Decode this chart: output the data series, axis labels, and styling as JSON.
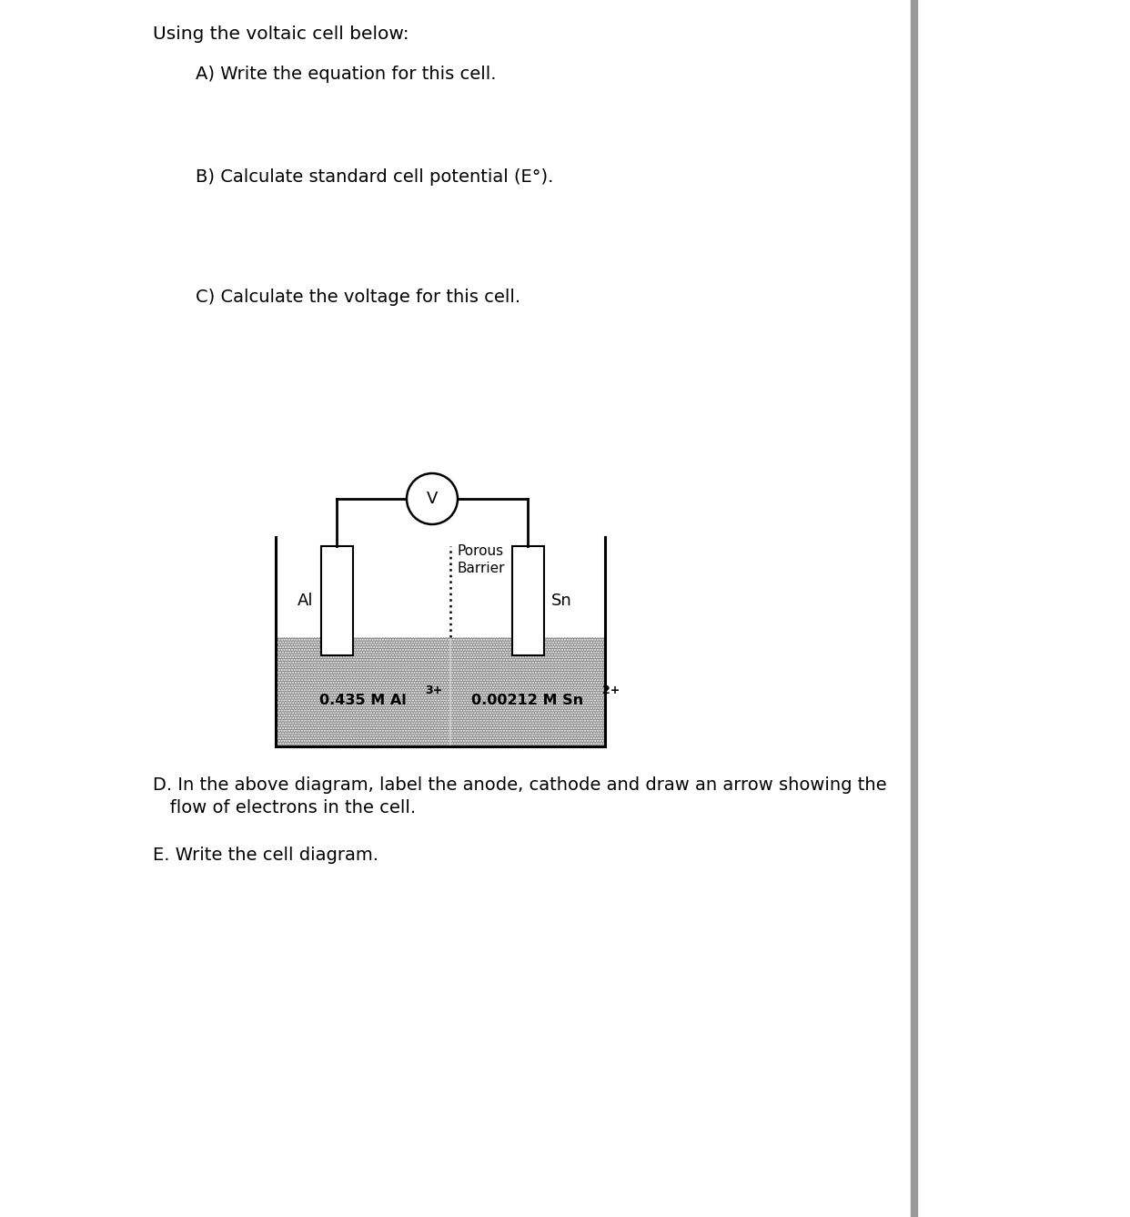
{
  "title_text": "Using the voltaic cell below:",
  "question_A": "A) Write the equation for this cell.",
  "question_B": "B) Calculate standard cell potential (E°).",
  "question_C": "C) Calculate the voltage for this cell.",
  "question_D": "D. In the above diagram, label the anode, cathode and draw an arrow showing the\n   flow of electrons in the cell.",
  "question_E": "E. Write the cell diagram.",
  "left_electrode": "Al",
  "right_electrode": "Sn",
  "porous_barrier_label": "Porous\nBarrier",
  "voltmeter_label": "V",
  "bg_color": "#ffffff",
  "text_color": "#000000",
  "font_size_title": 14.5,
  "font_size_questions": 14,
  "right_border_color": "#999999"
}
